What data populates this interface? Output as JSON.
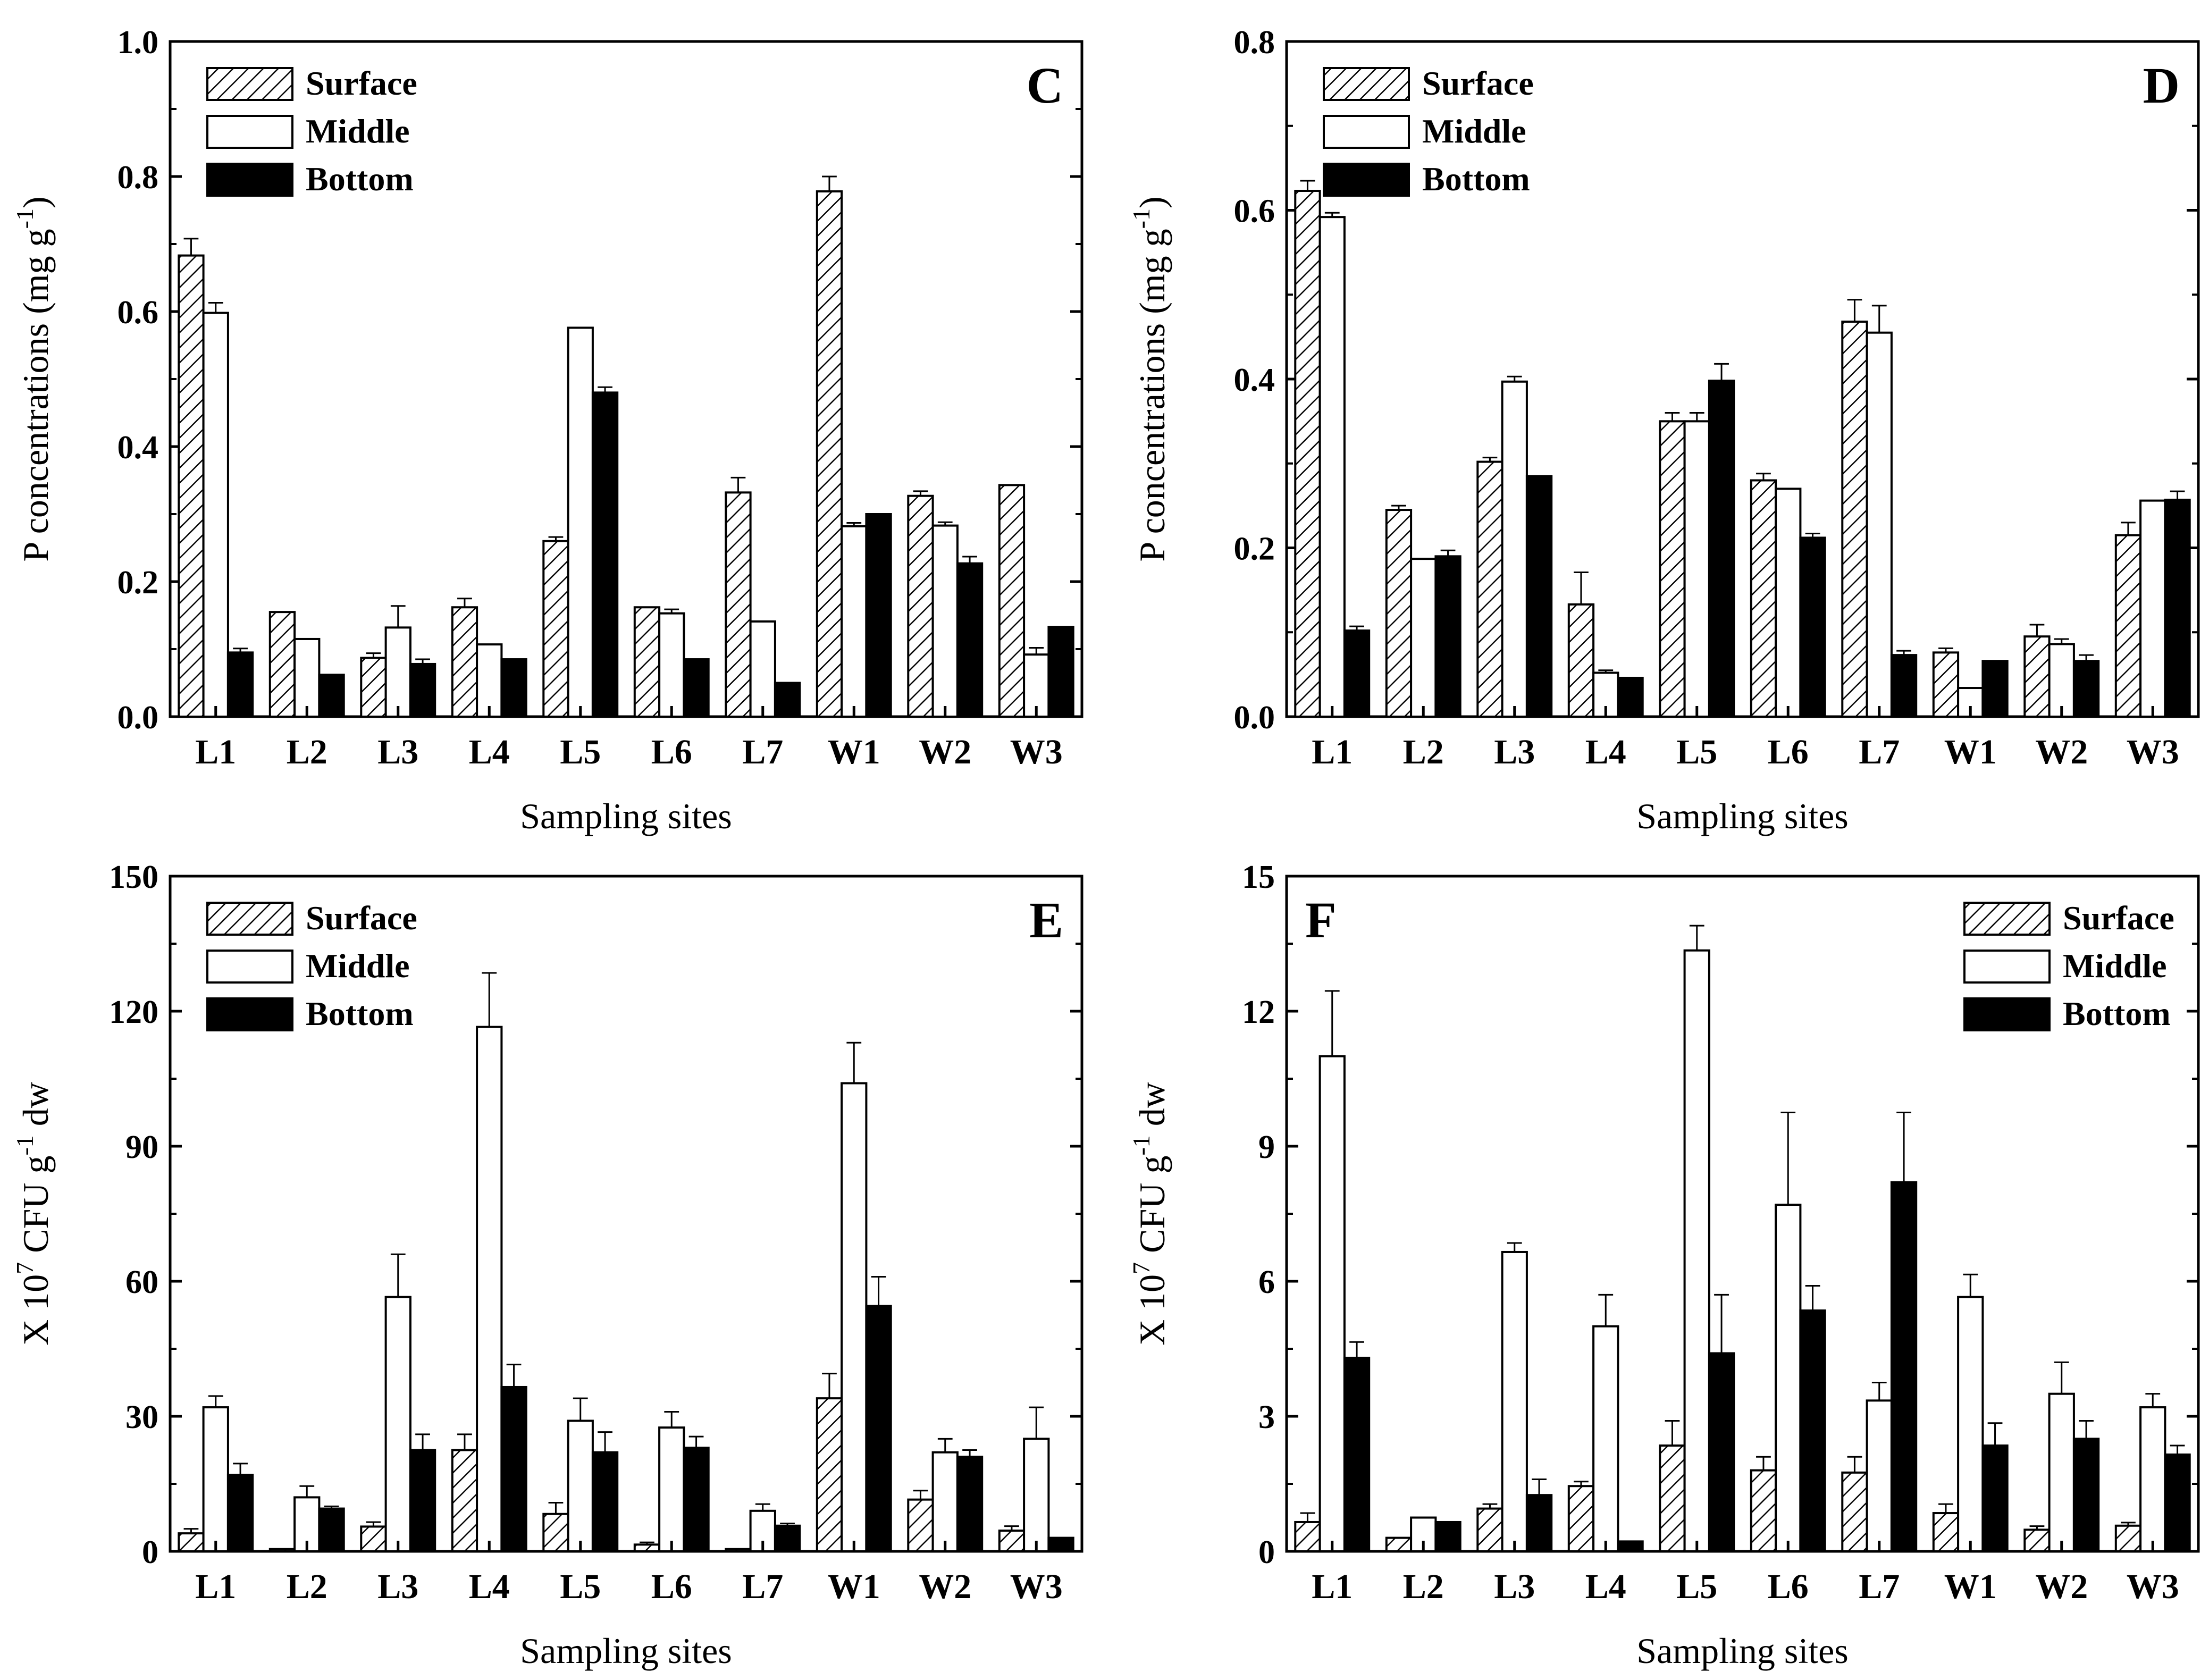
{
  "colors": {
    "surface_fill": "#ffffff",
    "surface_hatch": "#000000",
    "middle": "#ffffff",
    "bottom": "#000000",
    "axis": "#000000"
  },
  "chart_data": [
    {
      "panel": "C",
      "type": "bar",
      "xlabel": "Sampling sites",
      "ylabel": "P concentrations (mg g",
      "ylabel_sup": "-1",
      "ylabel_close": ")",
      "ylim": [
        0,
        1.0
      ],
      "yticks": [
        0.0,
        0.2,
        0.4,
        0.6,
        0.8,
        1.0
      ],
      "ytick_labels": [
        "0.0",
        "0.2",
        "0.4",
        "0.6",
        "0.8",
        "1.0"
      ],
      "legend_position": "top-left",
      "categories": [
        "L1",
        "L2",
        "L3",
        "L4",
        "L5",
        "L6",
        "L7",
        "W1",
        "W2",
        "W3"
      ],
      "series": [
        {
          "name": "Surface",
          "values": [
            0.683,
            0.155,
            0.087,
            0.162,
            0.26,
            0.162,
            0.332,
            0.778,
            0.327,
            0.343
          ],
          "errors": [
            0.025,
            0.0,
            0.007,
            0.013,
            0.006,
            0.0,
            0.022,
            0.022,
            0.007,
            0.0
          ]
        },
        {
          "name": "Middle",
          "values": [
            0.598,
            0.115,
            0.132,
            0.107,
            0.576,
            0.153,
            0.141,
            0.282,
            0.283,
            0.092
          ],
          "errors": [
            0.015,
            0.0,
            0.032,
            0.0,
            0.0,
            0.006,
            0.0,
            0.005,
            0.005,
            0.01
          ]
        },
        {
          "name": "Bottom",
          "values": [
            0.095,
            0.062,
            0.078,
            0.085,
            0.48,
            0.085,
            0.05,
            0.3,
            0.227,
            0.133
          ],
          "errors": [
            0.006,
            0.0,
            0.007,
            0.0,
            0.008,
            0.0,
            0.0,
            0.0,
            0.01,
            0.0
          ]
        }
      ]
    },
    {
      "panel": "D",
      "type": "bar",
      "xlabel": "Sampling sites",
      "ylabel": "P concentrations (mg g",
      "ylabel_sup": "-1",
      "ylabel_close": ")",
      "ylim": [
        0,
        0.8
      ],
      "yticks": [
        0.0,
        0.2,
        0.4,
        0.6,
        0.8
      ],
      "ytick_labels": [
        "0.0",
        "0.2",
        "0.4",
        "0.6",
        "0.8"
      ],
      "legend_position": "top-left",
      "categories": [
        "L1",
        "L2",
        "L3",
        "L4",
        "L5",
        "L6",
        "L7",
        "W1",
        "W2",
        "W3"
      ],
      "series": [
        {
          "name": "Surface",
          "values": [
            0.623,
            0.245,
            0.302,
            0.133,
            0.35,
            0.28,
            0.468,
            0.076,
            0.095,
            0.215
          ],
          "errors": [
            0.012,
            0.005,
            0.005,
            0.038,
            0.01,
            0.008,
            0.026,
            0.005,
            0.014,
            0.015
          ]
        },
        {
          "name": "Middle",
          "values": [
            0.592,
            0.187,
            0.397,
            0.052,
            0.35,
            0.27,
            0.455,
            0.034,
            0.086,
            0.256
          ],
          "errors": [
            0.005,
            0.0,
            0.006,
            0.003,
            0.01,
            0.0,
            0.032,
            0.0,
            0.006,
            0.0
          ]
        },
        {
          "name": "Bottom",
          "values": [
            0.102,
            0.19,
            0.285,
            0.046,
            0.398,
            0.212,
            0.073,
            0.066,
            0.066,
            0.257
          ],
          "errors": [
            0.005,
            0.007,
            0.0,
            0.0,
            0.02,
            0.005,
            0.005,
            0.0,
            0.007,
            0.01
          ]
        }
      ]
    },
    {
      "panel": "E",
      "type": "bar",
      "xlabel": "Sampling sites",
      "ylabel": "X 10",
      "ylabel_sup": "7",
      "ylabel_mid": " CFU g",
      "ylabel_sup2": "-1",
      "ylabel_close": " dw",
      "ylim": [
        0,
        150
      ],
      "yticks": [
        0,
        30,
        60,
        90,
        120,
        150
      ],
      "ytick_labels": [
        "0",
        "30",
        "60",
        "90",
        "120",
        "150"
      ],
      "legend_position": "top-left",
      "categories": [
        "L1",
        "L2",
        "L3",
        "L4",
        "L5",
        "L6",
        "L7",
        "W1",
        "W2",
        "W3"
      ],
      "series": [
        {
          "name": "Surface",
          "values": [
            4,
            0.5,
            5.5,
            22.5,
            8.3,
            1.5,
            0.5,
            34,
            11.5,
            4.6
          ],
          "errors": [
            1,
            0,
            1,
            3.5,
            2.5,
            0.5,
            0,
            5.5,
            2,
            1
          ]
        },
        {
          "name": "Middle",
          "values": [
            32,
            12,
            56.5,
            116.5,
            29,
            27.5,
            9,
            104,
            22,
            25
          ],
          "errors": [
            2.5,
            2.5,
            9.5,
            12,
            5,
            3.5,
            1.5,
            9,
            3,
            7
          ]
        },
        {
          "name": "Bottom",
          "values": [
            17,
            9.5,
            22.5,
            36.5,
            22,
            23,
            5.7,
            54.5,
            21,
            3
          ],
          "errors": [
            2.5,
            0.5,
            3.5,
            5,
            4.5,
            2.5,
            0.5,
            6.5,
            1.5,
            0
          ]
        }
      ]
    },
    {
      "panel": "F",
      "type": "bar",
      "xlabel": "Sampling sites",
      "ylabel": "X 10",
      "ylabel_sup": "7",
      "ylabel_mid": " CFU g",
      "ylabel_sup2": "-1",
      "ylabel_close": " dw",
      "ylim": [
        0,
        15
      ],
      "yticks": [
        0,
        3,
        6,
        9,
        12,
        15
      ],
      "ytick_labels": [
        "0",
        "3",
        "6",
        "9",
        "12",
        "15"
      ],
      "legend_position": "top-right",
      "categories": [
        "L1",
        "L2",
        "L3",
        "L4",
        "L5",
        "L6",
        "L7",
        "W1",
        "W2",
        "W3"
      ],
      "series": [
        {
          "name": "Surface",
          "values": [
            0.65,
            0.3,
            0.95,
            1.45,
            2.35,
            1.8,
            1.75,
            0.85,
            0.48,
            0.57
          ],
          "errors": [
            0.2,
            0,
            0.1,
            0.1,
            0.55,
            0.3,
            0.35,
            0.2,
            0.08,
            0.07
          ]
        },
        {
          "name": "Middle",
          "values": [
            11,
            0.75,
            6.65,
            5,
            13.35,
            7.7,
            3.35,
            5.65,
            3.5,
            3.2
          ],
          "errors": [
            1.45,
            0,
            0.2,
            0.7,
            0.55,
            2.05,
            0.4,
            0.5,
            0.7,
            0.3
          ]
        },
        {
          "name": "Bottom",
          "values": [
            4.3,
            0.65,
            1.25,
            0.22,
            4.4,
            5.35,
            8.2,
            2.35,
            2.5,
            2.15
          ],
          "errors": [
            0.35,
            0,
            0.35,
            0,
            1.3,
            0.55,
            1.55,
            0.5,
            0.4,
            0.2
          ]
        }
      ]
    }
  ]
}
